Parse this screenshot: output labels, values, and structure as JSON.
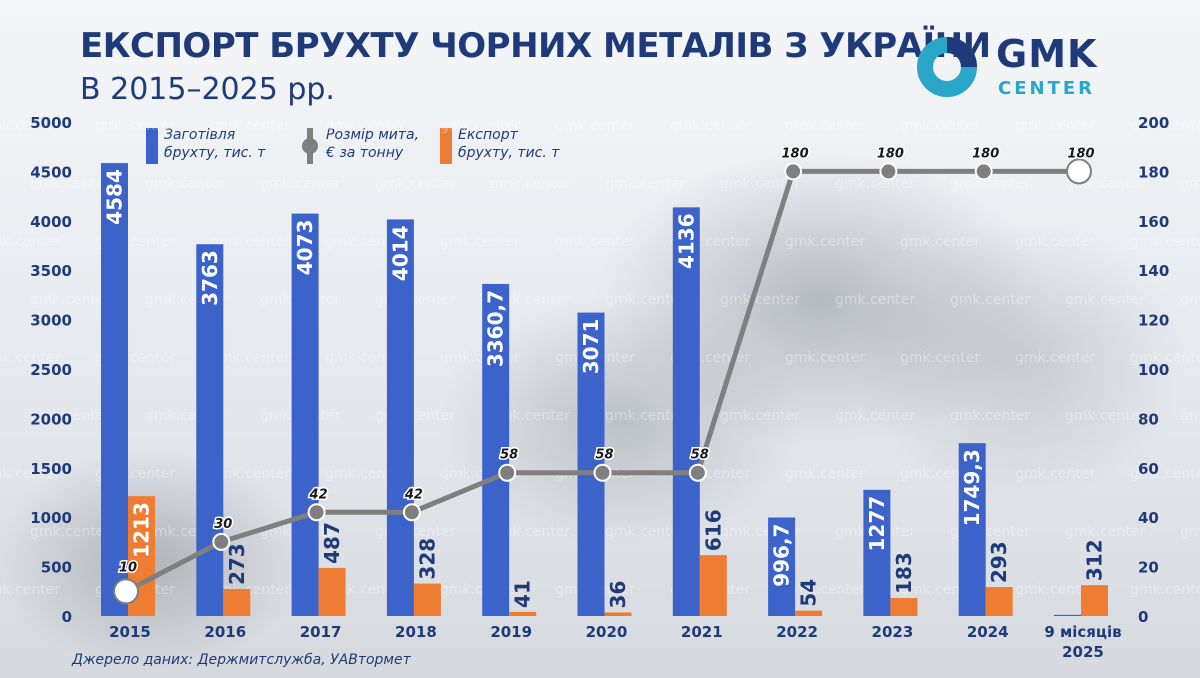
{
  "header": {
    "title": "ЕКСПОРТ БРУХТУ ЧОРНИХ МЕТАЛІВ З УКРАЇНИ",
    "subtitle": "В 2015–2025 рр."
  },
  "logo": {
    "main": "GMK",
    "sub": "CENTER"
  },
  "source": "Джерело даних: Держмитслужба, УАВтормет",
  "watermark": "gmk.center",
  "colors": {
    "procurement": "#3b63c9",
    "export": "#ee7d33",
    "duty": "#7f7f7f",
    "title": "#1f3a78",
    "accent": "#2aa6c8"
  },
  "legend": {
    "procurement": [
      "Заготівля",
      "брухту, тис. т"
    ],
    "duty": [
      "Розмір мита,",
      "€ за тонну"
    ],
    "export": [
      "Експорт",
      "брухту, тис. т"
    ]
  },
  "chart_data": {
    "type": "bar",
    "categories": [
      "2015",
      "2016",
      "2017",
      "2018",
      "2019",
      "2020",
      "2021",
      "2022",
      "2023",
      "2024",
      "9 місяців 2025"
    ],
    "series": [
      {
        "name": "Заготівля брухту, тис. т",
        "type": "bar",
        "axis": "left",
        "values": [
          4584,
          3763,
          4073,
          4014,
          3360.7,
          3071,
          4136,
          996.7,
          1277,
          1749.3,
          12
        ],
        "labels": [
          "4584",
          "3763",
          "4073",
          "4014",
          "3360,7",
          "3071",
          "4136",
          "996,7",
          "1277",
          "1749,3",
          ""
        ]
      },
      {
        "name": "Експорт брухту, тис. т",
        "type": "bar",
        "axis": "left",
        "values": [
          1213,
          273,
          487,
          328,
          41,
          36,
          616,
          54,
          183,
          293,
          312
        ],
        "labels": [
          "1213",
          "273",
          "487",
          "328",
          "41",
          "36",
          "616",
          "54",
          "183",
          "293",
          "312"
        ]
      },
      {
        "name": "Розмір мита, € за тонну",
        "type": "line",
        "axis": "right",
        "values": [
          10,
          30,
          42,
          42,
          58,
          58,
          58,
          180,
          180,
          180,
          180
        ],
        "labels": [
          "10",
          "30",
          "42",
          "42",
          "58",
          "58",
          "58",
          "180",
          "180",
          "180",
          "180"
        ]
      }
    ],
    "y_left": {
      "min": 0,
      "max": 5000,
      "ticks": [
        "0",
        "500",
        "1000",
        "1500",
        "2000",
        "2500",
        "3000",
        "3500",
        "4000",
        "4500",
        "5000"
      ]
    },
    "y_right": {
      "min": 0,
      "max": 200,
      "ticks": [
        "0",
        "20",
        "40",
        "60",
        "80",
        "100",
        "120",
        "140",
        "160",
        "180",
        "200"
      ]
    },
    "grid": false,
    "legend_position": "top"
  }
}
